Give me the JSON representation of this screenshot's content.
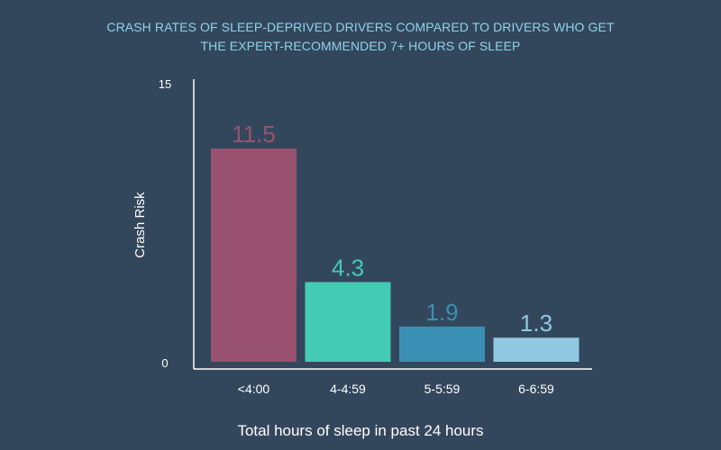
{
  "chart_data": {
    "type": "bar",
    "title_lines": [
      "CRASH RATES OF SLEEP-DEPRIVED DRIVERS COMPARED TO DRIVERS WHO GET",
      "THE EXPERT-RECOMMENDED 7+ HOURS OF SLEEP"
    ],
    "xlabel": "Total hours of sleep in past 24 hours",
    "ylabel": "Crash Risk",
    "ylim": [
      0,
      15
    ],
    "y_ticks": [
      "0",
      "15"
    ],
    "categories": [
      "<4:00",
      "4-4:59",
      "5-5:59",
      "6-6:59"
    ],
    "values": [
      11.5,
      4.3,
      1.9,
      1.3
    ],
    "value_labels": [
      "11.5",
      "4.3",
      "1.9",
      "1.3"
    ],
    "colors": [
      "#98526f",
      "#44cbb5",
      "#3a90b4",
      "#90c8e2"
    ],
    "grid": false,
    "legend": "none"
  }
}
